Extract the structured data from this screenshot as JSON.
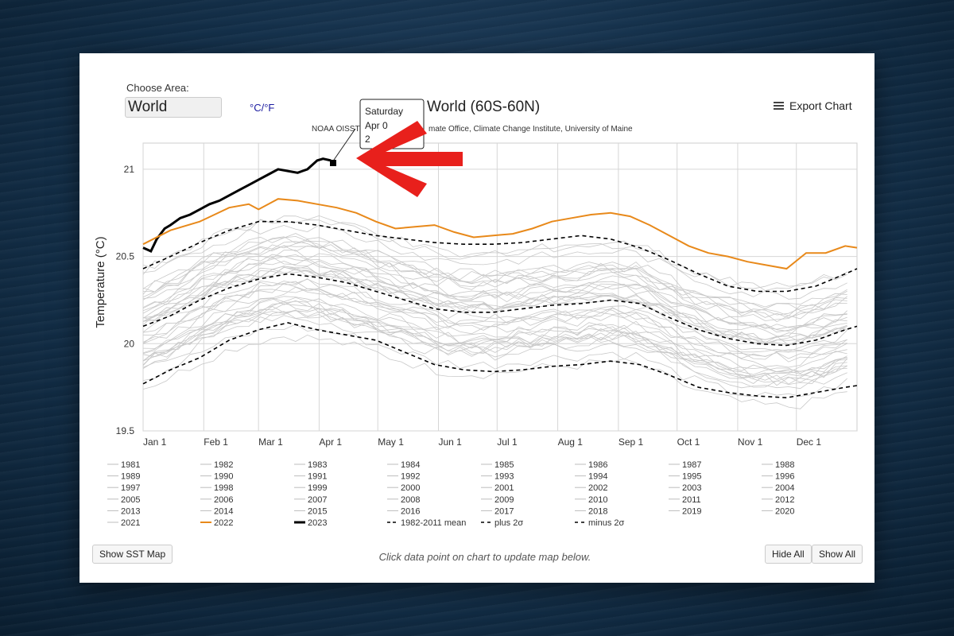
{
  "controls": {
    "area_label": "Choose Area:",
    "area_value": "World",
    "unit_toggle": "°C/°F",
    "export_label": "Export Chart",
    "show_map": "Show SST Map",
    "hide_all": "Hide All",
    "show_all": "Show All",
    "hint": "Click data point on chart to update map below."
  },
  "tooltip": {
    "day": "Saturday",
    "date": "Apr 0",
    "value": "2"
  },
  "colors": {
    "year_2022": "#e8891a",
    "year_2023": "#000000",
    "other_years": "#c8c8c8",
    "arrow": "#e8201c"
  },
  "chart_data": {
    "type": "line",
    "title": "World (60S-60N)",
    "subtitle_visible": "NOAA OISST",
    "subtitle_visible_tail": "mate Office, Climate Change Institute, University of Maine",
    "ylabel": "Temperature (°C)",
    "ylim": [
      19.5,
      21.15
    ],
    "y_ticks": [
      19.5,
      20,
      20.5,
      21
    ],
    "y_tick_labels": [
      "19.5",
      "20",
      "20.5",
      "21"
    ],
    "x_ticks_day": [
      1,
      32,
      60,
      91,
      121,
      152,
      182,
      213,
      244,
      274,
      305,
      335
    ],
    "x_tick_labels": [
      "Jan 1",
      "Feb 1",
      "Mar 1",
      "Apr 1",
      "May 1",
      "Jun 1",
      "Jul 1",
      "Aug 1",
      "Sep 1",
      "Oct 1",
      "Nov 1",
      "Dec 1"
    ],
    "x_range_day": [
      1,
      366
    ],
    "series": [
      {
        "name": "2023",
        "style": "bold-black",
        "x": [
          1,
          5,
          8,
          12,
          15,
          20,
          25,
          30,
          35,
          40,
          45,
          50,
          55,
          60,
          65,
          70,
          75,
          80,
          85,
          90,
          93,
          97
        ],
        "y": [
          20.55,
          20.53,
          20.6,
          20.66,
          20.68,
          20.72,
          20.74,
          20.77,
          20.8,
          20.82,
          20.85,
          20.88,
          20.91,
          20.94,
          20.97,
          21.0,
          20.99,
          20.98,
          21.0,
          21.05,
          21.06,
          21.05
        ]
      },
      {
        "name": "2022",
        "style": "orange",
        "x": [
          1,
          15,
          30,
          45,
          55,
          60,
          70,
          80,
          90,
          100,
          110,
          120,
          130,
          140,
          150,
          160,
          170,
          180,
          190,
          200,
          210,
          220,
          230,
          240,
          250,
          260,
          270,
          280,
          290,
          300,
          310,
          320,
          330,
          340,
          350,
          360,
          366
        ],
        "y": [
          20.57,
          20.65,
          20.7,
          20.78,
          20.8,
          20.77,
          20.83,
          20.82,
          20.8,
          20.78,
          20.75,
          20.7,
          20.66,
          20.67,
          20.68,
          20.64,
          20.61,
          20.62,
          20.63,
          20.66,
          20.7,
          20.72,
          20.74,
          20.75,
          20.73,
          20.68,
          20.62,
          20.56,
          20.52,
          20.5,
          20.47,
          20.45,
          20.43,
          20.52,
          20.52,
          20.56,
          20.55
        ]
      },
      {
        "name": "1982-2011 mean",
        "style": "dashed",
        "x": [
          1,
          15,
          30,
          45,
          60,
          75,
          90,
          105,
          120,
          135,
          150,
          165,
          180,
          195,
          210,
          225,
          240,
          255,
          270,
          285,
          300,
          315,
          330,
          345,
          360,
          366
        ],
        "y": [
          20.1,
          20.16,
          20.25,
          20.32,
          20.37,
          20.4,
          20.38,
          20.35,
          20.3,
          20.25,
          20.2,
          20.18,
          20.18,
          20.2,
          20.22,
          20.23,
          20.25,
          20.23,
          20.15,
          20.08,
          20.03,
          20.0,
          19.99,
          20.02,
          20.08,
          20.1
        ]
      },
      {
        "name": "plus 2σ",
        "style": "dashed",
        "x": [
          1,
          15,
          30,
          45,
          60,
          75,
          90,
          105,
          120,
          135,
          150,
          165,
          180,
          195,
          210,
          225,
          240,
          255,
          270,
          285,
          300,
          315,
          330,
          345,
          360,
          366
        ],
        "y": [
          20.43,
          20.5,
          20.58,
          20.65,
          20.7,
          20.7,
          20.68,
          20.65,
          20.62,
          20.6,
          20.58,
          20.57,
          20.57,
          20.58,
          20.6,
          20.62,
          20.6,
          20.55,
          20.48,
          20.4,
          20.33,
          20.3,
          20.3,
          20.33,
          20.4,
          20.43
        ]
      },
      {
        "name": "minus 2σ",
        "style": "dashed",
        "x": [
          1,
          15,
          30,
          45,
          60,
          75,
          90,
          105,
          120,
          135,
          150,
          165,
          180,
          195,
          210,
          225,
          240,
          255,
          270,
          285,
          300,
          315,
          330,
          345,
          360,
          366
        ],
        "y": [
          19.77,
          19.85,
          19.92,
          20.02,
          20.08,
          20.12,
          20.08,
          20.05,
          20.02,
          19.95,
          19.88,
          19.85,
          19.84,
          19.85,
          19.87,
          19.88,
          19.9,
          19.88,
          19.82,
          19.75,
          19.72,
          19.7,
          19.69,
          19.72,
          19.75,
          19.76
        ]
      }
    ],
    "legend": [
      [
        "1981",
        "1982",
        "1983",
        "1984",
        "1985",
        "1986",
        "1987",
        "1988"
      ],
      [
        "1989",
        "1990",
        "1991",
        "1992",
        "1993",
        "1994",
        "1995",
        "1996"
      ],
      [
        "1997",
        "1998",
        "1999",
        "2000",
        "2001",
        "2002",
        "2003",
        "2004"
      ],
      [
        "2005",
        "2006",
        "2007",
        "2008",
        "2009",
        "2010",
        "2011",
        "2012"
      ],
      [
        "2013",
        "2014",
        "2015",
        "2016",
        "2017",
        "2018",
        "2019",
        "2020"
      ],
      [
        "2021",
        "2022",
        "2023",
        "1982-2011 mean",
        "plus 2σ",
        "minus 2σ"
      ]
    ],
    "legend_placement": "bottom",
    "grid": true
  }
}
